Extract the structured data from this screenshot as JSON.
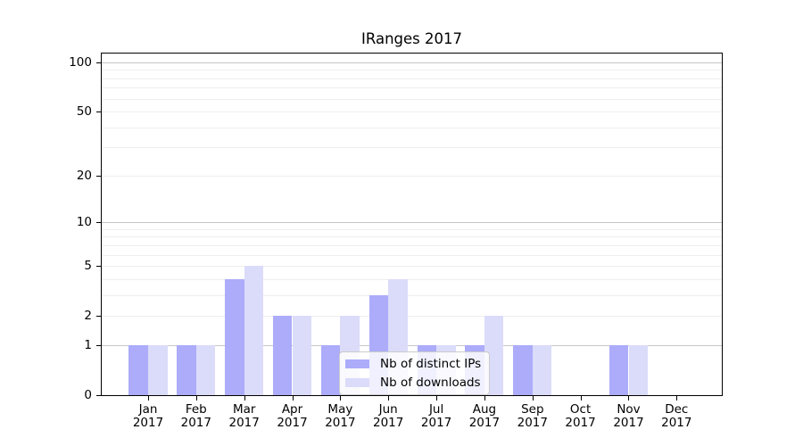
{
  "title": "IRanges 2017",
  "colors": {
    "ips_bar": "#acacfa",
    "downloads_bar": "#dbdbfa",
    "grid_major": "#c6c6c6",
    "grid_minor": "#eeeeee",
    "axis_line": "#000000",
    "legend_border": "#cccccc"
  },
  "legend": {
    "items": [
      {
        "label": "Nb of distinct IPs",
        "color_key": "ips_bar"
      },
      {
        "label": "Nb of downloads",
        "color_key": "downloads_bar"
      }
    ]
  },
  "y_axis": {
    "scale": "log1p",
    "tick_values": [
      0,
      1,
      2,
      5,
      10,
      20,
      50,
      100
    ],
    "tick_labels": [
      "0",
      "1",
      "2",
      "5",
      "10",
      "20",
      "50",
      "100"
    ],
    "major_grid_values": [
      1,
      10,
      100
    ],
    "minor_grid_values": [
      2,
      3,
      4,
      5,
      6,
      7,
      8,
      9,
      20,
      30,
      40,
      50,
      60,
      70,
      80,
      90
    ]
  },
  "x_axis": {
    "months": [
      "Jan",
      "Feb",
      "Mar",
      "Apr",
      "May",
      "Jun",
      "Jul",
      "Aug",
      "Sep",
      "Oct",
      "Nov",
      "Dec"
    ],
    "year": "2017"
  },
  "chart_data": {
    "type": "bar",
    "title": "IRanges 2017",
    "categories": [
      "Jan 2017",
      "Feb 2017",
      "Mar 2017",
      "Apr 2017",
      "May 2017",
      "Jun 2017",
      "Jul 2017",
      "Aug 2017",
      "Sep 2017",
      "Oct 2017",
      "Nov 2017",
      "Dec 2017"
    ],
    "series": [
      {
        "name": "Nb of distinct IPs",
        "values": [
          1,
          1,
          4,
          2,
          1,
          3,
          1,
          1,
          1,
          0,
          1,
          0
        ]
      },
      {
        "name": "Nb of downloads",
        "values": [
          1,
          1,
          5,
          2,
          2,
          4,
          1,
          2,
          1,
          0,
          1,
          0
        ]
      }
    ],
    "xlabel": "",
    "ylabel": "",
    "yscale": "log1p",
    "ylim": [
      0,
      114
    ],
    "yticks": [
      0,
      1,
      2,
      5,
      10,
      20,
      50,
      100
    ],
    "grid": true,
    "legend_position": "inside lower-center-left"
  }
}
